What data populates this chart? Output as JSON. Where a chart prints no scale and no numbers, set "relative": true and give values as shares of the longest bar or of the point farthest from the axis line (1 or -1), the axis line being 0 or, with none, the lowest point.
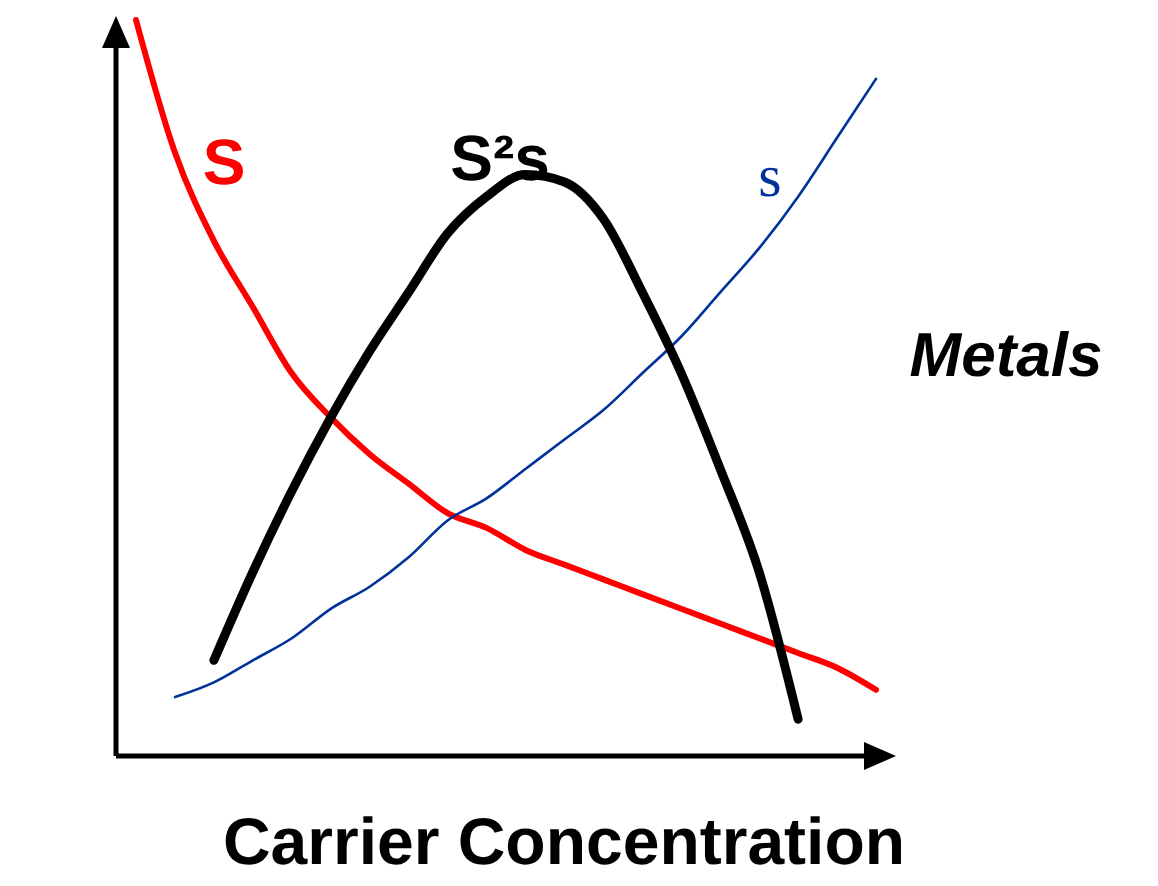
{
  "chart_data": {
    "type": "line",
    "relative": true,
    "xlabel": "Carrier Concentration",
    "annotations": [
      "Metals"
    ],
    "legend": false,
    "categories": [
      null,
      null,
      null,
      null,
      null,
      null,
      null,
      null,
      null,
      null,
      null,
      null,
      null,
      null,
      null,
      null,
      null,
      null,
      null,
      null
    ],
    "series": [
      {
        "name": "S",
        "color": "#ff0000",
        "values": [
          1,
          0.82,
          0.7,
          0.61,
          0.52,
          0.46,
          0.41,
          0.37,
          0.33,
          0.31,
          0.28,
          0.26,
          0.24,
          0.22,
          0.2,
          0.18,
          0.16,
          0.14,
          0.12,
          0.09
        ]
      },
      {
        "name": "s",
        "color": "#003399",
        "values": [
          null,
          0.08,
          0.1,
          0.13,
          0.16,
          0.2,
          0.23,
          0.27,
          0.32,
          0.35,
          0.39,
          0.43,
          0.47,
          0.52,
          0.57,
          0.63,
          0.69,
          0.76,
          0.84,
          0.92
        ]
      },
      {
        "name": "S²s",
        "color": "#000000",
        "values": [
          null,
          null,
          0.13,
          0.25,
          0.36,
          0.46,
          0.55,
          0.63,
          0.71,
          0.76,
          0.79,
          0.78,
          0.73,
          0.63,
          0.52,
          0.39,
          0.25,
          0.05,
          null,
          null
        ]
      }
    ]
  }
}
